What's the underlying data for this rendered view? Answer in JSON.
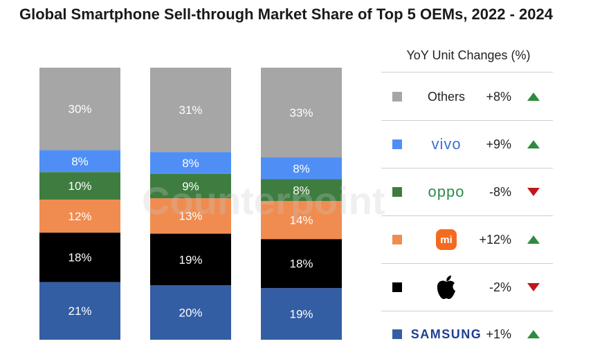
{
  "title": "Global Smartphone Sell-through Market Share of Top 5 OEMs, 2022 - 2024",
  "watermark": "Counterpoint",
  "legend": {
    "heading": "YoY Unit Changes (%)",
    "rows": [
      {
        "brand": "Others",
        "change": "+8%",
        "direction": "up",
        "color": "#a6a6a6",
        "icon": "text"
      },
      {
        "brand": "vivo",
        "change": "+9%",
        "direction": "up",
        "color": "#4f8ff5",
        "icon": "vivo-logo"
      },
      {
        "brand": "oppo",
        "change": "-8%",
        "direction": "down",
        "color": "#3e7d3f",
        "icon": "oppo-logo"
      },
      {
        "brand": "mi",
        "change": "+12%",
        "direction": "up",
        "color": "#f08c4f",
        "icon": "xiaomi-logo"
      },
      {
        "brand": "Apple",
        "change": "-2%",
        "direction": "down",
        "color": "#000000",
        "icon": "apple-logo"
      },
      {
        "brand": "SAMSUNG",
        "change": "+1%",
        "direction": "up",
        "color": "#345ea3",
        "icon": "samsung-logo"
      }
    ],
    "up_color": "#2e8b3e",
    "down_color": "#c0161b"
  },
  "chart_data": {
    "type": "bar",
    "stacked": true,
    "categories": [
      "",
      "",
      ""
    ],
    "series": [
      {
        "name": "SAMSUNG",
        "color": "#345ea3",
        "values": [
          21,
          20,
          19
        ],
        "labels": [
          "21%",
          "20%",
          "19%"
        ]
      },
      {
        "name": "Apple",
        "color": "#000000",
        "values": [
          18,
          19,
          18
        ],
        "labels": [
          "18%",
          "19%",
          "18%"
        ]
      },
      {
        "name": "mi",
        "color": "#f08c4f",
        "values": [
          12,
          13,
          14
        ],
        "labels": [
          "12%",
          "13%",
          "14%"
        ]
      },
      {
        "name": "oppo",
        "color": "#3e7d3f",
        "values": [
          10,
          9,
          8
        ],
        "labels": [
          "10%",
          "9%",
          "8%"
        ]
      },
      {
        "name": "vivo",
        "color": "#4f8ff5",
        "values": [
          8,
          8,
          8
        ],
        "labels": [
          "8%",
          "8%",
          "8%"
        ]
      },
      {
        "name": "Others",
        "color": "#a6a6a6",
        "values": [
          30,
          31,
          33
        ],
        "labels": [
          "30%",
          "31%",
          "33%"
        ]
      }
    ],
    "ylim": [
      0,
      100
    ],
    "grid": false
  }
}
